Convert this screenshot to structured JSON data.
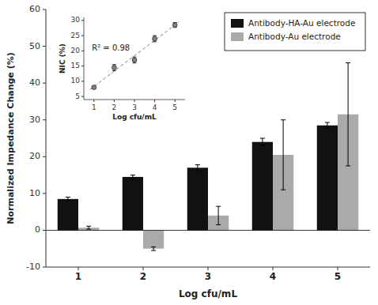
{
  "chart_data": [
    {
      "type": "bar",
      "xlabel": "Log cfu/mL",
      "ylabel": "Normalized Impedance Change (%)",
      "categories": [
        1,
        2,
        3,
        4,
        5
      ],
      "series": [
        {
          "name": "Antibody-HA-Au electrode",
          "color": "#111111",
          "values": [
            8.5,
            14.5,
            17.0,
            24.0,
            28.5
          ],
          "errors": [
            0.5,
            0.5,
            0.8,
            1.0,
            0.8
          ]
        },
        {
          "name": "Antibody-Au electrode",
          "color": "#aaaaaa",
          "values": [
            0.7,
            -5.0,
            4.0,
            20.5,
            31.5
          ],
          "errors": [
            0.4,
            0.5,
            2.5,
            9.5,
            14.0
          ]
        }
      ],
      "ylim": [
        -10,
        60
      ],
      "yticks": [
        -10,
        0,
        10,
        20,
        30,
        40,
        50,
        60
      ],
      "legend": "upper right",
      "grid": false
    },
    {
      "type": "scatter",
      "xlabel": "Log cfu/mL",
      "ylabel": "NIC (%)",
      "x": [
        1,
        2,
        3,
        4,
        5
      ],
      "values": [
        8.0,
        14.5,
        17.0,
        24.0,
        28.5
      ],
      "errors": [
        0.5,
        1.0,
        1.0,
        1.0,
        0.8
      ],
      "color": "gray",
      "marker": "circle",
      "fit": {
        "x": [
          0.8,
          5.2
        ],
        "values": [
          7.29,
          29.51
        ],
        "color": "gray",
        "line_style": "dashed"
      },
      "annotation": "R² = 0.98",
      "xlim": [
        0.5,
        5.5
      ],
      "xticks": [
        1,
        2,
        3,
        4,
        5
      ],
      "ylim": [
        4,
        31
      ],
      "yticks": [
        5,
        10,
        15,
        20,
        25,
        30
      ],
      "grid": false
    }
  ]
}
